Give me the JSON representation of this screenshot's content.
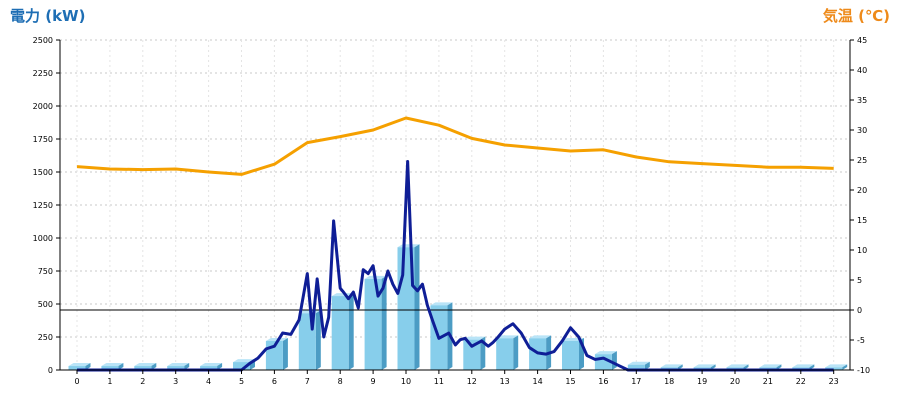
{
  "chart_data": {
    "type": "bar+line",
    "left_axis": {
      "title": "電力 (kW)",
      "color": "#1E6EB4",
      "ylim": [
        0,
        2500
      ],
      "ticks": [
        0,
        250,
        500,
        750,
        1000,
        1250,
        1500,
        1750,
        2000,
        2250,
        2500
      ]
    },
    "right_axis": {
      "title": "気温 (℃)",
      "color": "#EE8A1A",
      "ylim": [
        -10,
        45
      ],
      "ticks": [
        -10,
        -5,
        0,
        5,
        10,
        15,
        20,
        25,
        30,
        35,
        40,
        45
      ]
    },
    "x_ticks": [
      "0",
      "1",
      "2",
      "3",
      "4",
      "5",
      "6",
      "7",
      "8",
      "9",
      "10",
      "11",
      "12",
      "13",
      "14",
      "15",
      "16",
      "17",
      "18",
      "19",
      "20",
      "21",
      "22",
      "23"
    ],
    "grid": true,
    "reference_line": {
      "axis": "right",
      "value": 0
    },
    "bar_series": {
      "color": "#87CEEB",
      "axis": "left",
      "values": [
        30,
        30,
        30,
        30,
        30,
        60,
        220,
        430,
        560,
        690,
        930,
        490,
        230,
        240,
        240,
        220,
        120,
        40,
        20,
        20,
        20,
        20,
        20,
        20
      ]
    },
    "temperature_series": {
      "color": "#F5A000",
      "axis": "right",
      "x": [
        0,
        1,
        2,
        3,
        4,
        5,
        6,
        7,
        8,
        9,
        10,
        11,
        12,
        13,
        14,
        15,
        16,
        17,
        18,
        19,
        20,
        21,
        22,
        23
      ],
      "values": [
        23.9,
        23.5,
        23.4,
        23.5,
        23.0,
        22.6,
        24.3,
        27.9,
        28.9,
        30.0,
        32.0,
        30.8,
        28.6,
        27.5,
        27.0,
        26.5,
        26.7,
        25.5,
        24.7,
        24.4,
        24.1,
        23.8,
        23.8,
        23.6
      ]
    },
    "power_series": {
      "color": "#0F1E96",
      "axis": "left",
      "x": [
        0,
        1,
        2,
        3,
        4,
        5,
        5.25,
        5.5,
        5.75,
        6,
        6.25,
        6.5,
        6.75,
        7,
        7.15,
        7.3,
        7.5,
        7.65,
        7.8,
        8,
        8.1,
        8.25,
        8.4,
        8.55,
        8.7,
        8.85,
        9,
        9.15,
        9.3,
        9.45,
        9.6,
        9.75,
        9.9,
        10.05,
        10.2,
        10.35,
        10.5,
        10.65,
        10.8,
        11,
        11.15,
        11.3,
        11.5,
        11.65,
        11.8,
        12,
        12.15,
        12.3,
        12.5,
        12.65,
        12.8,
        13,
        13.25,
        13.5,
        13.75,
        14,
        14.25,
        14.5,
        14.75,
        15,
        15.25,
        15.5,
        15.75,
        16,
        16.25,
        16.5,
        16.75,
        17,
        17.25,
        17.5,
        18,
        19,
        20,
        21,
        22,
        23
      ],
      "values": [
        0,
        0,
        0,
        0,
        0,
        0,
        50,
        90,
        160,
        180,
        280,
        270,
        380,
        730,
        310,
        690,
        250,
        400,
        1130,
        620,
        590,
        540,
        590,
        470,
        760,
        730,
        790,
        560,
        620,
        750,
        650,
        580,
        720,
        1580,
        640,
        600,
        650,
        490,
        380,
        240,
        260,
        280,
        190,
        230,
        240,
        180,
        200,
        220,
        180,
        210,
        250,
        310,
        350,
        280,
        170,
        130,
        120,
        140,
        220,
        320,
        250,
        110,
        80,
        90,
        60,
        30,
        0,
        0,
        0,
        0,
        0,
        0,
        0,
        0,
        0,
        0
      ]
    }
  }
}
